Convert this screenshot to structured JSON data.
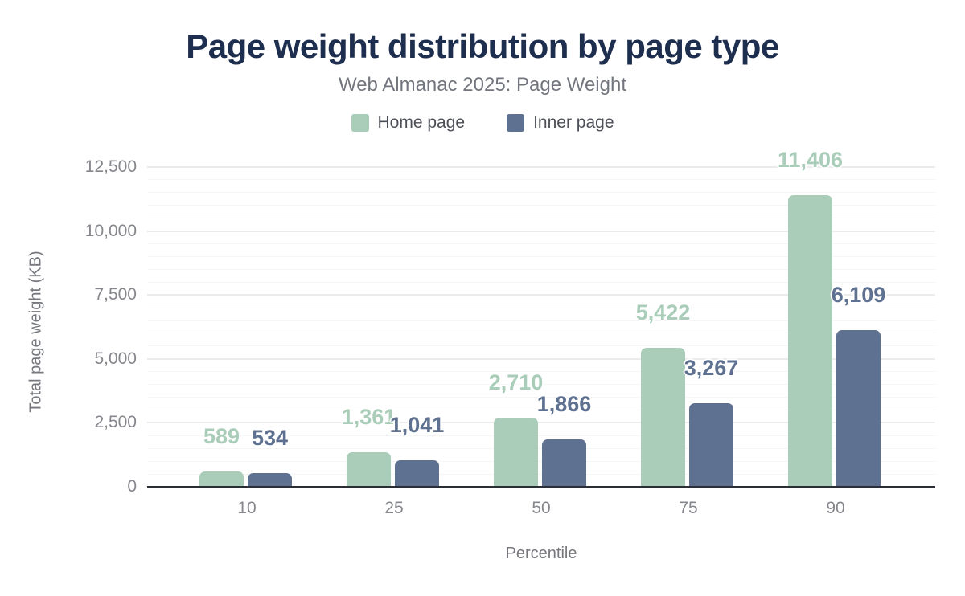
{
  "chart_data": {
    "type": "bar",
    "title": "Page weight distribution by page type",
    "subtitle": "Web Almanac 2025: Page Weight",
    "xlabel": "Percentile",
    "ylabel": "Total page weight (KB)",
    "categories": [
      "10",
      "25",
      "50",
      "75",
      "90"
    ],
    "series": [
      {
        "name": "Home page",
        "color": "#a9cdb8",
        "values": [
          589,
          1361,
          2710,
          5422,
          11406
        ],
        "labels": [
          "589",
          "1,361",
          "2,710",
          "5,422",
          "11,406"
        ]
      },
      {
        "name": "Inner page",
        "color": "#5e7190",
        "values": [
          534,
          1041,
          1866,
          3267,
          6109
        ],
        "labels": [
          "534",
          "1,041",
          "1,866",
          "3,267",
          "6,109"
        ]
      }
    ],
    "ylim": [
      0,
      12500
    ],
    "yticks": [
      {
        "value": 0,
        "label": "0"
      },
      {
        "value": 2500,
        "label": "2,500"
      },
      {
        "value": 5000,
        "label": "5,000"
      },
      {
        "value": 7500,
        "label": "7,500"
      },
      {
        "value": 10000,
        "label": "10,000"
      },
      {
        "value": 12500,
        "label": "12,500"
      }
    ],
    "minor_tick_step": 500,
    "grid": "on",
    "legend_position": "top"
  },
  "theme": {
    "background": "#ffffff",
    "title_color": "#1d2e4e",
    "subtitle_color": "#72757e",
    "tick_label_color": "#85878c",
    "axis_title_color": "#76787e",
    "axis_line_color": "#2b2e34",
    "grid_major_color": "#ebebeb",
    "grid_minor_color": "#f5f5f5",
    "home_page_color": "#a9cdb8",
    "inner_page_color": "#5e7190"
  }
}
